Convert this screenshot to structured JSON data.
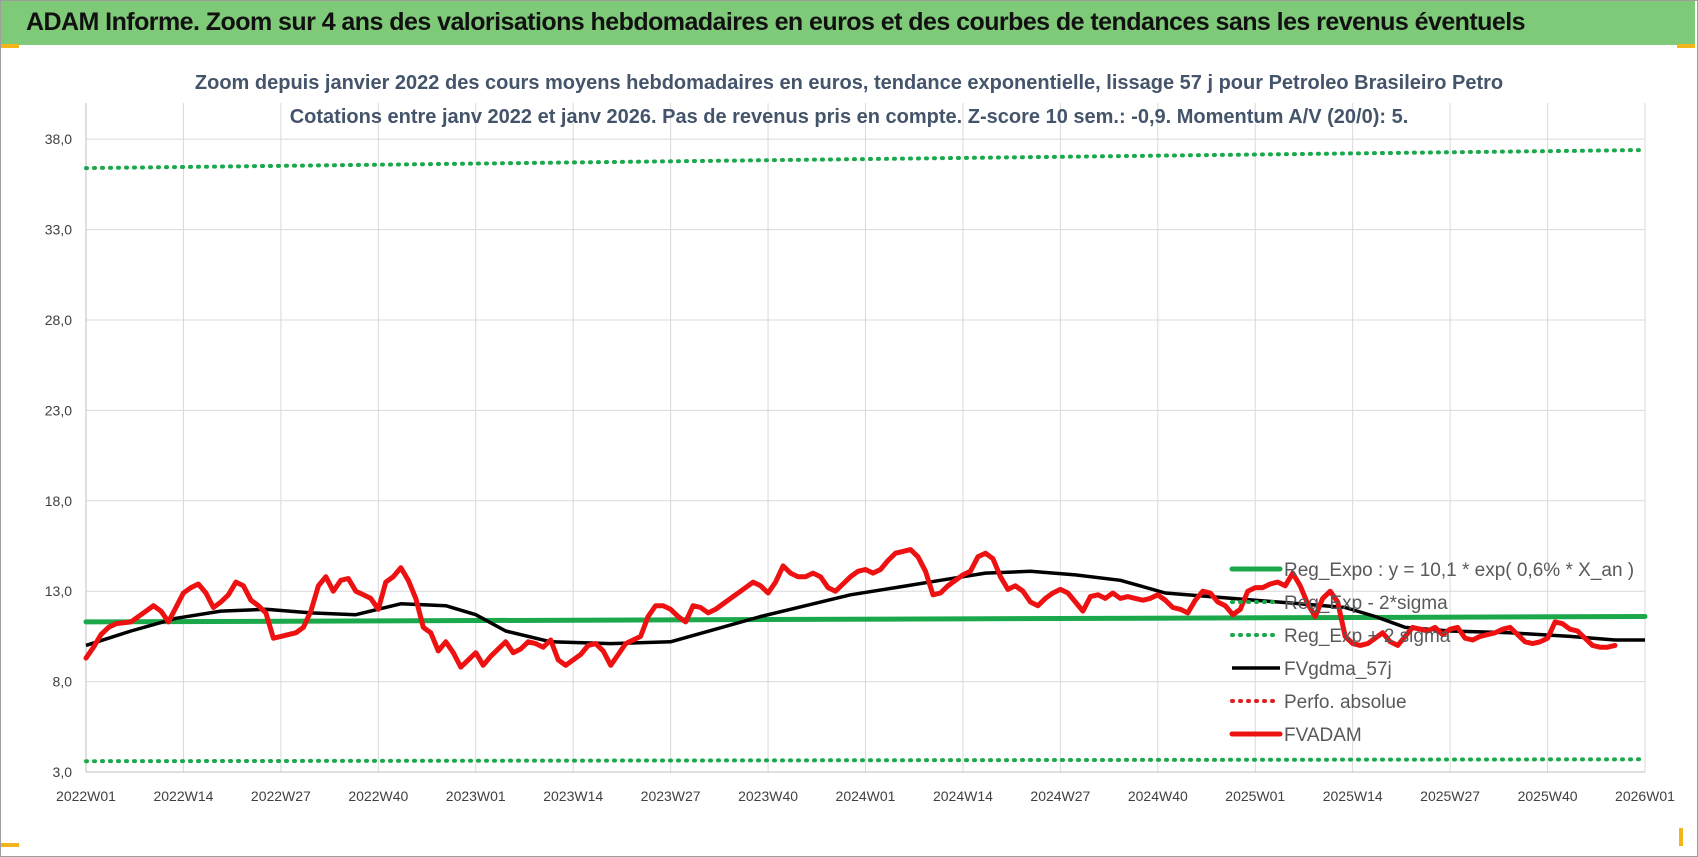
{
  "header": {
    "title": "ADAM Informe. Zoom sur 4 ans des valorisations hebdomadaires en euros et des courbes de tendances sans les revenus éventuels"
  },
  "colors": {
    "header_bg": "#7fca78",
    "reg_expo": "#1aa84a",
    "dotted_band": "#1aa84a",
    "fvgdma": "#000000",
    "perfo": "#e02020",
    "fvadam": "#ee1111"
  },
  "chart_data": {
    "type": "line",
    "title": "Zoom depuis janvier 2022 des cours moyens hebdomadaires en euros, tendance exponentielle, lissage 57 j pour Petroleo Brasileiro Petro",
    "subtitle": "Cotations entre janv 2022 et janv 2026. Pas de revenus pris en compte. Z-score 10 sem.: -0,9. Momentum A/V (20/0): 5.",
    "xlabel": "",
    "ylabel": "",
    "ylim": [
      3,
      40
    ],
    "yticks": [
      3,
      8,
      13,
      18,
      23,
      28,
      33,
      38
    ],
    "ytick_labels": [
      "3,0",
      "8,0",
      "13,0",
      "18,0",
      "23,0",
      "28,0",
      "33,0",
      "38,0"
    ],
    "x_weeks": 209,
    "xtick_labels": [
      "2022W01",
      "2022W14",
      "2022W27",
      "2022W40",
      "2023W01",
      "2023W14",
      "2023W27",
      "2023W40",
      "2024W01",
      "2024W14",
      "2024W27",
      "2024W40",
      "2025W01",
      "2025W14",
      "2025W27",
      "2025W40",
      "2026W01"
    ],
    "grid": true,
    "legend_position": "bottom-right",
    "series": [
      {
        "name": "Reg_Expo : y = 10,1 * exp( 0,6% *  X_an )",
        "style": "solid-thick",
        "color": "#1aa84a",
        "points": [
          [
            0,
            11.3
          ],
          [
            208,
            11.6
          ]
        ]
      },
      {
        "name": "Reg_Exp - 2*sigma",
        "style": "dotted",
        "color": "#1aa84a",
        "points": [
          [
            0,
            3.6
          ],
          [
            208,
            3.7
          ]
        ]
      },
      {
        "name": "Reg_Exp + 2 sigma",
        "style": "dotted",
        "color": "#1aa84a",
        "points": [
          [
            0,
            36.4
          ],
          [
            208,
            37.4
          ]
        ]
      },
      {
        "name": "FVgdma_57j",
        "style": "solid",
        "color": "#000000",
        "points": [
          [
            0,
            10.0
          ],
          [
            6,
            10.8
          ],
          [
            12,
            11.5
          ],
          [
            18,
            11.9
          ],
          [
            24,
            12.0
          ],
          [
            30,
            11.8
          ],
          [
            36,
            11.7
          ],
          [
            42,
            12.3
          ],
          [
            48,
            12.2
          ],
          [
            52,
            11.7
          ],
          [
            56,
            10.8
          ],
          [
            62,
            10.2
          ],
          [
            70,
            10.1
          ],
          [
            78,
            10.2
          ],
          [
            84,
            10.9
          ],
          [
            90,
            11.6
          ],
          [
            96,
            12.2
          ],
          [
            102,
            12.8
          ],
          [
            108,
            13.2
          ],
          [
            114,
            13.6
          ],
          [
            120,
            14.0
          ],
          [
            126,
            14.1
          ],
          [
            132,
            13.9
          ],
          [
            138,
            13.6
          ],
          [
            144,
            12.9
          ],
          [
            150,
            12.7
          ],
          [
            156,
            12.5
          ],
          [
            162,
            12.3
          ],
          [
            168,
            12.1
          ],
          [
            172,
            11.6
          ],
          [
            176,
            11.0
          ],
          [
            182,
            10.8
          ],
          [
            190,
            10.7
          ],
          [
            198,
            10.5
          ],
          [
            204,
            10.3
          ],
          [
            208,
            10.3
          ]
        ]
      },
      {
        "name": "Perfo. absolue",
        "style": "dotted",
        "color": "#e02020",
        "points": []
      },
      {
        "name": "FVADAM",
        "style": "solid-thick",
        "color": "#ee1111",
        "points": [
          [
            0,
            9.3
          ],
          [
            1,
            9.9
          ],
          [
            2,
            10.6
          ],
          [
            3,
            11.0
          ],
          [
            4,
            11.2
          ],
          [
            6,
            11.3
          ],
          [
            7,
            11.6
          ],
          [
            8,
            11.9
          ],
          [
            9,
            12.2
          ],
          [
            10,
            11.9
          ],
          [
            11,
            11.3
          ],
          [
            12,
            12.1
          ],
          [
            13,
            12.9
          ],
          [
            14,
            13.2
          ],
          [
            15,
            13.4
          ],
          [
            16,
            12.9
          ],
          [
            17,
            12.1
          ],
          [
            18,
            12.4
          ],
          [
            19,
            12.8
          ],
          [
            20,
            13.5
          ],
          [
            21,
            13.3
          ],
          [
            22,
            12.5
          ],
          [
            23,
            12.2
          ],
          [
            24,
            11.8
          ],
          [
            25,
            10.4
          ],
          [
            26,
            10.5
          ],
          [
            27,
            10.6
          ],
          [
            28,
            10.7
          ],
          [
            29,
            11.0
          ],
          [
            30,
            11.9
          ],
          [
            31,
            13.3
          ],
          [
            32,
            13.8
          ],
          [
            33,
            13.0
          ],
          [
            34,
            13.6
          ],
          [
            35,
            13.7
          ],
          [
            36,
            13.0
          ],
          [
            37,
            12.8
          ],
          [
            38,
            12.6
          ],
          [
            39,
            12.0
          ],
          [
            40,
            13.5
          ],
          [
            41,
            13.8
          ],
          [
            42,
            14.3
          ],
          [
            43,
            13.6
          ],
          [
            44,
            12.6
          ],
          [
            45,
            11.0
          ],
          [
            46,
            10.7
          ],
          [
            47,
            9.7
          ],
          [
            48,
            10.2
          ],
          [
            49,
            9.6
          ],
          [
            50,
            8.8
          ],
          [
            51,
            9.2
          ],
          [
            52,
            9.6
          ],
          [
            53,
            8.9
          ],
          [
            54,
            9.4
          ],
          [
            55,
            9.8
          ],
          [
            56,
            10.2
          ],
          [
            57,
            9.6
          ],
          [
            58,
            9.8
          ],
          [
            59,
            10.2
          ],
          [
            60,
            10.1
          ],
          [
            61,
            9.9
          ],
          [
            62,
            10.3
          ],
          [
            63,
            9.2
          ],
          [
            64,
            8.9
          ],
          [
            65,
            9.2
          ],
          [
            66,
            9.5
          ],
          [
            67,
            10.0
          ],
          [
            68,
            10.1
          ],
          [
            69,
            9.7
          ],
          [
            70,
            8.9
          ],
          [
            71,
            9.5
          ],
          [
            72,
            10.1
          ],
          [
            73,
            10.3
          ],
          [
            74,
            10.5
          ],
          [
            75,
            11.6
          ],
          [
            76,
            12.2
          ],
          [
            77,
            12.2
          ],
          [
            78,
            12.0
          ],
          [
            79,
            11.6
          ],
          [
            80,
            11.3
          ],
          [
            81,
            12.2
          ],
          [
            82,
            12.1
          ],
          [
            83,
            11.8
          ],
          [
            84,
            12.0
          ],
          [
            85,
            12.3
          ],
          [
            86,
            12.6
          ],
          [
            87,
            12.9
          ],
          [
            88,
            13.2
          ],
          [
            89,
            13.5
          ],
          [
            90,
            13.3
          ],
          [
            91,
            12.9
          ],
          [
            92,
            13.5
          ],
          [
            93,
            14.4
          ],
          [
            94,
            14.0
          ],
          [
            95,
            13.8
          ],
          [
            96,
            13.8
          ],
          [
            97,
            14.0
          ],
          [
            98,
            13.8
          ],
          [
            99,
            13.2
          ],
          [
            100,
            13.0
          ],
          [
            101,
            13.4
          ],
          [
            102,
            13.8
          ],
          [
            103,
            14.1
          ],
          [
            104,
            14.2
          ],
          [
            105,
            14.0
          ],
          [
            106,
            14.2
          ],
          [
            107,
            14.7
          ],
          [
            108,
            15.1
          ],
          [
            109,
            15.2
          ],
          [
            110,
            15.3
          ],
          [
            111,
            14.9
          ],
          [
            112,
            14.1
          ],
          [
            113,
            12.8
          ],
          [
            114,
            12.9
          ],
          [
            115,
            13.3
          ],
          [
            116,
            13.6
          ],
          [
            117,
            13.9
          ],
          [
            118,
            14.1
          ],
          [
            119,
            14.9
          ],
          [
            120,
            15.1
          ],
          [
            121,
            14.8
          ],
          [
            122,
            13.8
          ],
          [
            123,
            13.1
          ],
          [
            124,
            13.3
          ],
          [
            125,
            13.0
          ],
          [
            126,
            12.4
          ],
          [
            127,
            12.2
          ],
          [
            128,
            12.6
          ],
          [
            129,
            12.9
          ],
          [
            130,
            13.1
          ],
          [
            131,
            12.9
          ],
          [
            132,
            12.4
          ],
          [
            133,
            11.9
          ],
          [
            134,
            12.7
          ],
          [
            135,
            12.8
          ],
          [
            136,
            12.6
          ],
          [
            137,
            12.9
          ],
          [
            138,
            12.6
          ],
          [
            139,
            12.7
          ],
          [
            140,
            12.6
          ],
          [
            141,
            12.5
          ],
          [
            142,
            12.6
          ],
          [
            143,
            12.8
          ],
          [
            144,
            12.5
          ],
          [
            145,
            12.1
          ],
          [
            146,
            12.0
          ],
          [
            147,
            11.8
          ],
          [
            148,
            12.5
          ],
          [
            149,
            13.0
          ],
          [
            150,
            12.9
          ],
          [
            151,
            12.4
          ],
          [
            152,
            12.2
          ],
          [
            153,
            11.7
          ],
          [
            154,
            12.0
          ],
          [
            155,
            13.0
          ],
          [
            156,
            13.2
          ],
          [
            157,
            13.2
          ],
          [
            158,
            13.4
          ],
          [
            159,
            13.5
          ],
          [
            160,
            13.3
          ],
          [
            161,
            14.0
          ],
          [
            162,
            13.3
          ],
          [
            163,
            12.3
          ],
          [
            164,
            11.6
          ],
          [
            165,
            12.6
          ],
          [
            166,
            13.0
          ],
          [
            167,
            12.4
          ],
          [
            168,
            10.5
          ],
          [
            169,
            10.1
          ],
          [
            170,
            10.0
          ],
          [
            171,
            10.1
          ],
          [
            172,
            10.4
          ],
          [
            173,
            10.7
          ],
          [
            174,
            10.2
          ],
          [
            175,
            10.0
          ],
          [
            176,
            10.5
          ],
          [
            177,
            11.0
          ],
          [
            178,
            10.9
          ],
          [
            179,
            10.8
          ],
          [
            180,
            11.0
          ],
          [
            181,
            10.6
          ],
          [
            182,
            10.9
          ],
          [
            183,
            11.0
          ],
          [
            184,
            10.4
          ],
          [
            185,
            10.3
          ],
          [
            186,
            10.5
          ],
          [
            187,
            10.6
          ],
          [
            188,
            10.7
          ],
          [
            189,
            10.9
          ],
          [
            190,
            11.0
          ],
          [
            191,
            10.6
          ],
          [
            192,
            10.2
          ],
          [
            193,
            10.1
          ],
          [
            194,
            10.2
          ],
          [
            195,
            10.4
          ],
          [
            196,
            11.3
          ],
          [
            197,
            11.2
          ],
          [
            198,
            10.9
          ],
          [
            199,
            10.8
          ],
          [
            200,
            10.4
          ],
          [
            201,
            10.0
          ],
          [
            202,
            9.9
          ],
          [
            203,
            9.9
          ],
          [
            204,
            10.0
          ]
        ]
      }
    ]
  }
}
